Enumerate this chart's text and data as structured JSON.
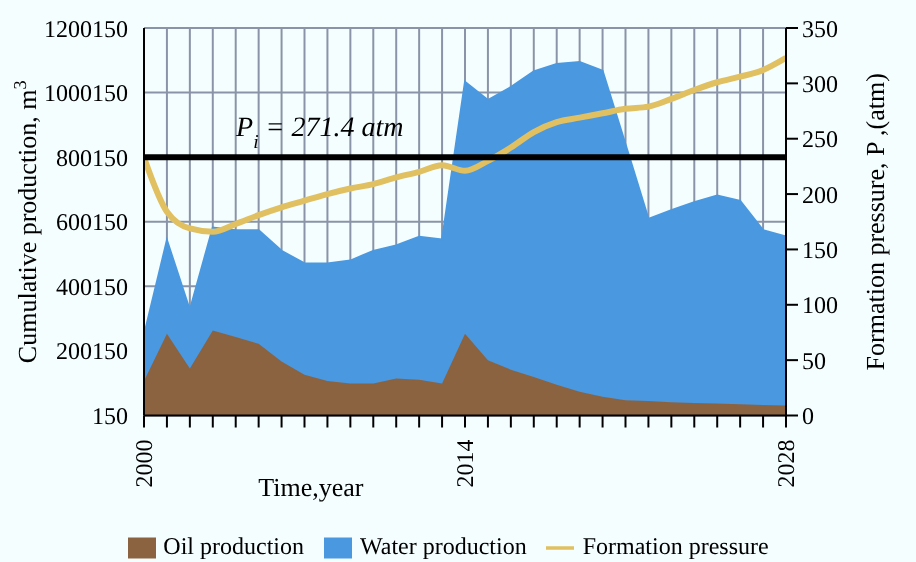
{
  "chart_data": {
    "type": "area",
    "stacked": true,
    "x": [
      2000,
      2001,
      2002,
      2003,
      2004,
      2005,
      2006,
      2007,
      2008,
      2009,
      2010,
      2011,
      2012,
      2013,
      2014,
      2015,
      2016,
      2017,
      2018,
      2019,
      2020,
      2021,
      2022,
      2023,
      2024,
      2025,
      2026,
      2027,
      2028
    ],
    "series": [
      {
        "name": "Oil production",
        "color": "#8b6340",
        "values": [
          107000,
          253000,
          146000,
          263000,
          243000,
          222000,
          167000,
          126000,
          107000,
          99000,
          99000,
          115000,
          111000,
          99000,
          253000,
          171000,
          142000,
          119000,
          95000,
          74000,
          58000,
          47000,
          45000,
          41000,
          39000,
          37000,
          35000,
          33000,
          31000
        ]
      },
      {
        "name": "Water production",
        "color": "#4a98e0",
        "values": [
          142000,
          290000,
          181000,
          319000,
          331000,
          352000,
          343000,
          345000,
          364000,
          381000,
          411000,
          412000,
          443000,
          446000,
          780000,
          806000,
          875000,
          947000,
          994000,
          1021000,
          1010000,
          793000,
          564000,
          595000,
          622000,
          644000,
          630000,
          541000,
          523000
        ]
      },
      {
        "name": "Formation pressure",
        "type": "line",
        "axis": "y2",
        "color": "#e0c060",
        "values": [
          233,
          184,
          169,
          166,
          173,
          181,
          188,
          194,
          200,
          205,
          209,
          215,
          220,
          226,
          221,
          230,
          242,
          256,
          265,
          269,
          273,
          277,
          279,
          286,
          294,
          301,
          306,
          312,
          323
        ]
      }
    ],
    "xlabel": "Time,year",
    "ylabel": "Cumulative production, m$^{3}$",
    "y2label": "Formation pressure, P ,(atm)",
    "xlim": [
      2000,
      2028
    ],
    "xticks": [
      2000,
      {
        "value": 2001,
        "label": null
      },
      {
        "value": 2002,
        "label": null
      },
      {
        "value": 2003,
        "label": null
      },
      {
        "value": 2004,
        "label": null
      },
      {
        "value": 2005,
        "label": null
      },
      {
        "value": 2006,
        "label": null
      },
      {
        "value": 2007,
        "label": null
      },
      {
        "value": 2008,
        "label": null
      },
      {
        "value": 2009,
        "label": null
      },
      {
        "value": 2010,
        "label": null
      },
      {
        "value": 2011,
        "label": null
      },
      {
        "value": 2012,
        "label": null
      },
      {
        "value": 2013,
        "label": null
      },
      2014,
      {
        "value": 2015,
        "label": null
      },
      {
        "value": 2016,
        "label": null
      },
      {
        "value": 2017,
        "label": null
      },
      {
        "value": 2018,
        "label": null
      },
      {
        "value": 2019,
        "label": null
      },
      {
        "value": 2020,
        "label": null
      },
      {
        "value": 2021,
        "label": null
      },
      {
        "value": 2022,
        "label": null
      },
      {
        "value": 2023,
        "label": null
      },
      {
        "value": 2024,
        "label": null
      },
      {
        "value": 2025,
        "label": null
      },
      {
        "value": 2026,
        "label": null
      },
      {
        "value": 2027,
        "label": null
      },
      2028
    ],
    "ylim": [
      150,
      1200150
    ],
    "yticks": [
      150,
      200150,
      400150,
      600150,
      800150,
      1000150,
      1200150
    ],
    "y2lim": [
      0,
      350
    ],
    "y2ticks": [
      0,
      50,
      100,
      150,
      200,
      250,
      300,
      350
    ],
    "ref_lines": [
      {
        "axis": "y",
        "value": 800150,
        "color": "#000000"
      }
    ],
    "annotations": [
      "P$_{i}$ = 271.4 atm"
    ],
    "grid": true,
    "legend": "bottom"
  }
}
